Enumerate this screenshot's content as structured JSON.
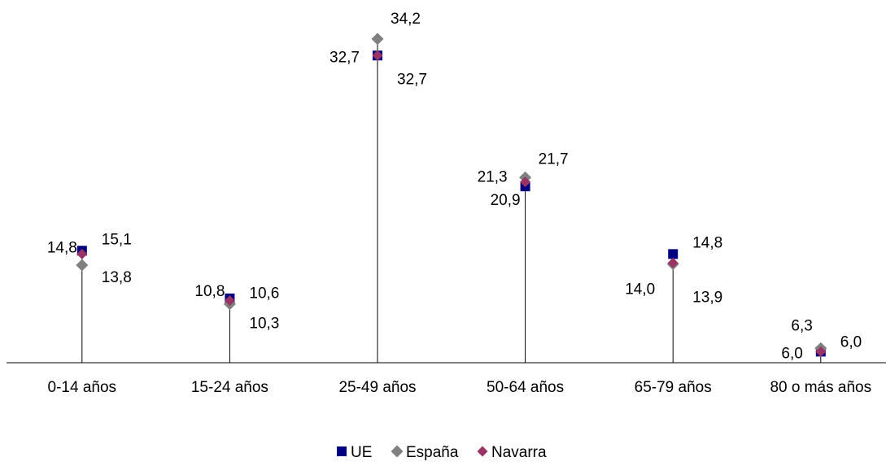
{
  "chart_data": {
    "type": "scatter",
    "categories": [
      "0-14 años",
      "15-24 años",
      "25-49 años",
      "50-64 años",
      "65-79 años",
      "80 o más años"
    ],
    "series": [
      {
        "name": "UE",
        "values": [
          15.1,
          10.8,
          32.7,
          20.9,
          14.8,
          6.0
        ],
        "labels": [
          "15,1",
          "10,8",
          "32,7",
          "20,9",
          "14,8",
          "6,0"
        ]
      },
      {
        "name": "España",
        "values": [
          13.8,
          10.3,
          34.2,
          21.7,
          13.9,
          6.3
        ],
        "labels": [
          "13,8",
          "10,3",
          "34,2",
          "21,7",
          "13,9",
          "6,3"
        ]
      },
      {
        "name": "Navarra",
        "values": [
          14.8,
          10.6,
          32.7,
          21.3,
          14.0,
          6.0
        ],
        "labels": [
          "14,8",
          "10,6",
          "32,7",
          "21,3",
          "14,0",
          "6,0"
        ]
      }
    ],
    "ylim": [
      5,
      35.8
    ],
    "legend_position": "bottom",
    "grid": false,
    "drop_lines": true
  },
  "colors": {
    "UE": "#000080",
    "España": "#808080",
    "Navarra": "#993366",
    "axis": "#000000"
  }
}
